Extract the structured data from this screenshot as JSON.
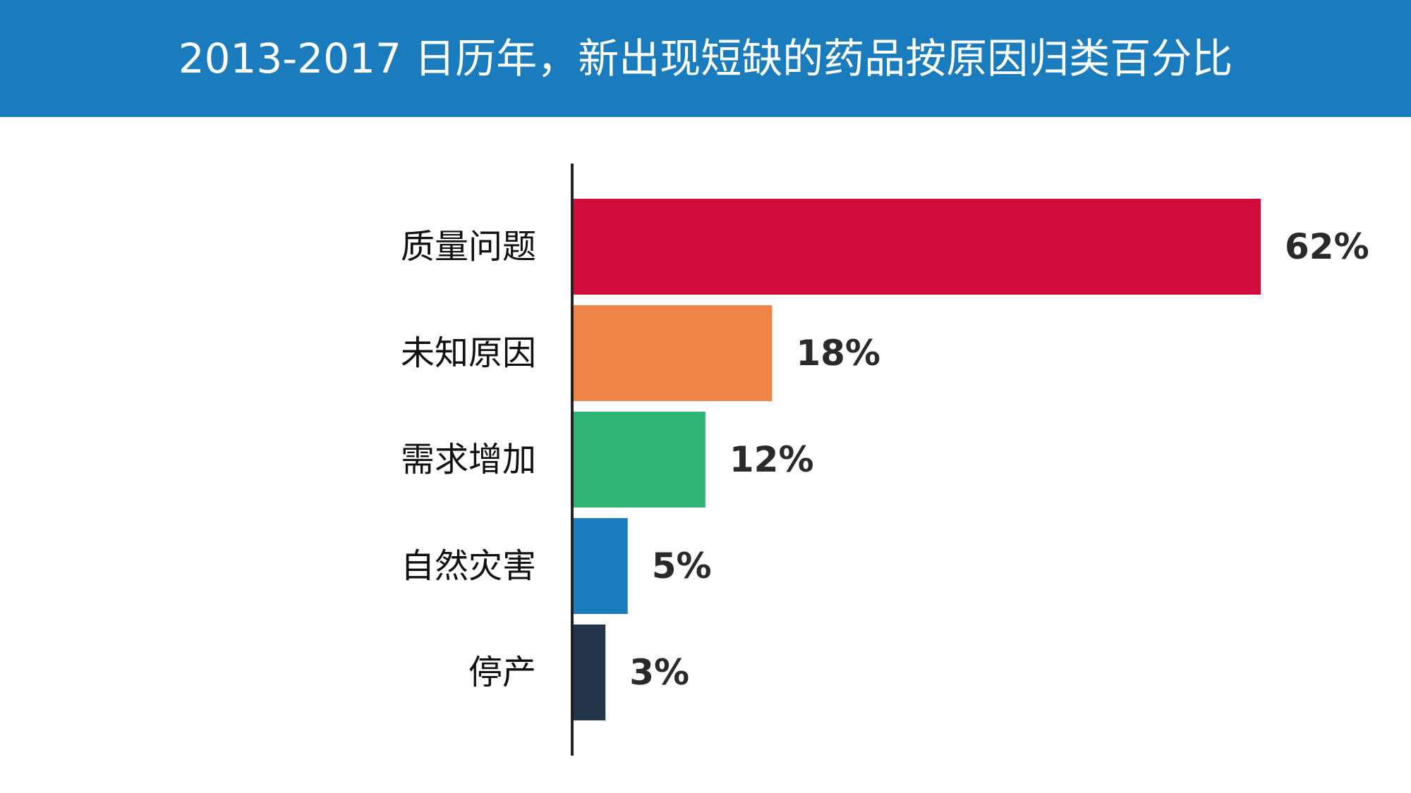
{
  "header": {
    "title": "2013-2017 日历年，新出现短缺的药品按原因归类百分比",
    "background_color": "#1a7bbd"
  },
  "chart_data": {
    "type": "bar",
    "orientation": "horizontal",
    "title": "2013-2017 日历年，新出现短缺的药品按原因归类百分比",
    "categories": [
      "质量问题",
      "未知原因",
      "需求增加",
      "自然灾害",
      "停产"
    ],
    "values": [
      62,
      18,
      12,
      5,
      3
    ],
    "value_labels": [
      "62%",
      "18%",
      "12%",
      "5%",
      "3%"
    ],
    "unit": "%",
    "colors": [
      "#d20c3a",
      "#ee8446",
      "#30b575",
      "#1a7bbd",
      "#23344a"
    ],
    "xlim": [
      0,
      62
    ],
    "grid": false,
    "legend": "none"
  }
}
